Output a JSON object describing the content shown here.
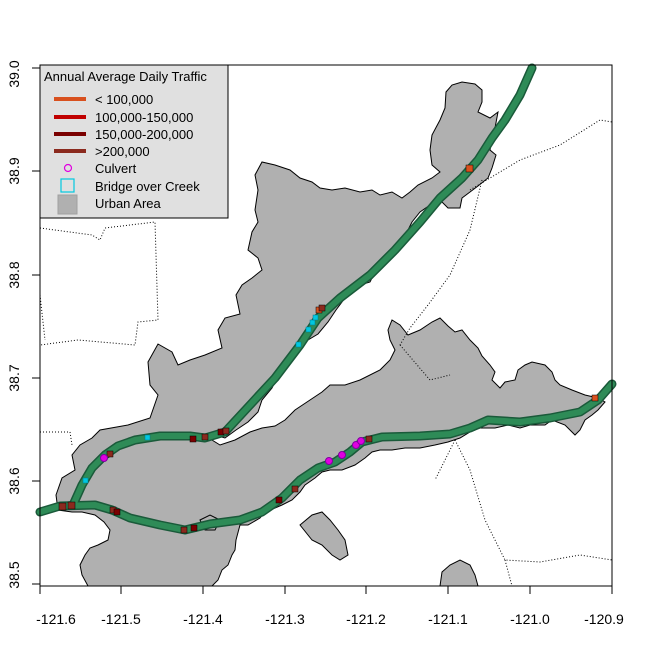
{
  "legend": {
    "title": "Annual Average Daily Traffic",
    "items": [
      {
        "label": "< 100,000",
        "kind": "line",
        "color": "#D8501E"
      },
      {
        "label": "100,000-150,000",
        "kind": "line",
        "color": "#C00000"
      },
      {
        "label": "150,000-200,000",
        "kind": "line",
        "color": "#7A0000"
      },
      {
        "label": ">200,000",
        "kind": "line",
        "color": "#8B2A1E"
      },
      {
        "label": "Culvert",
        "kind": "circle",
        "color": "#E000E0"
      },
      {
        "label": "Bridge over Creek",
        "kind": "square",
        "color": "#00C8E0"
      },
      {
        "label": "Urban Area",
        "kind": "fill",
        "color": "#B0B0B0"
      }
    ]
  },
  "axes": {
    "x_ticks": [
      "-121.6",
      "-121.5",
      "-121.4",
      "-121.3",
      "-121.2",
      "-121.1",
      "-121.0",
      "-120.9"
    ],
    "y_ticks": [
      "38.5",
      "38.6",
      "38.7",
      "38.8",
      "38.9",
      "39.0"
    ],
    "x_range": [
      -121.6,
      -120.9
    ],
    "y_range": [
      38.5,
      39.0
    ]
  },
  "colors": {
    "urban": "#B0B0B0",
    "highway": "#2E8B57",
    "highway_edge": "#1A5A3A",
    "boundary": "#000000",
    "legend_bg": "#E0E0E0"
  }
}
